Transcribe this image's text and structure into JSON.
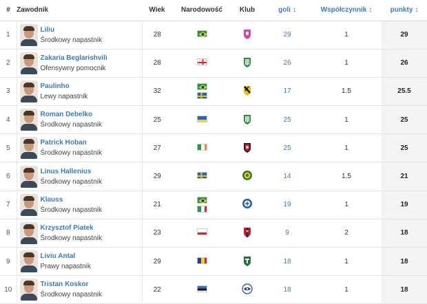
{
  "header": {
    "num": "#",
    "player": "Zawodnik",
    "age": "Wiek",
    "nation": "Narodowość",
    "club": "Klub",
    "goals": "goli",
    "coef": "Współczynnik",
    "points": "punkty",
    "sort_arrow": "↕"
  },
  "rows": [
    {
      "num": "1",
      "name": "Liliu",
      "position": "Środkowy napastnik",
      "age": "28",
      "flags": [
        "brazil-flag"
      ],
      "club_icon": "club-crest-pink",
      "goals": "29",
      "coef": "1",
      "points": "29"
    },
    {
      "num": "2",
      "name": "Zakaria Beglarishvili",
      "position": "Ofensywny pomocnik",
      "age": "28",
      "flags": [
        "georgia-flag"
      ],
      "club_icon": "club-crest-green-white",
      "goals": "26",
      "coef": "1",
      "points": "26"
    },
    {
      "num": "3",
      "name": "Paulinho",
      "position": "Lewy napastnik",
      "age": "32",
      "flags": [
        "brazil-flag",
        "sweden-flag"
      ],
      "club_icon": "club-crest-black-yellow",
      "goals": "17",
      "coef": "1.5",
      "points": "25.5"
    },
    {
      "num": "4",
      "name": "Roman Debelko",
      "position": "Środkowy napastnik",
      "age": "25",
      "flags": [
        "ukraine-flag"
      ],
      "club_icon": "club-crest-green-white",
      "goals": "25",
      "coef": "1",
      "points": "25"
    },
    {
      "num": "5",
      "name": "Patrick Hoban",
      "position": "Środkowy napastnik",
      "age": "27",
      "flags": [
        "ireland-flag"
      ],
      "club_icon": "club-crest-red-black",
      "goals": "25",
      "coef": "1",
      "points": "25"
    },
    {
      "num": "6",
      "name": "Linus Hallenius",
      "position": "Środkowy napastnik",
      "age": "29",
      "flags": [
        "sweden-flag"
      ],
      "club_icon": "club-crest-green-yellow",
      "goals": "14",
      "coef": "1.5",
      "points": "21"
    },
    {
      "num": "7",
      "name": "Klauss",
      "position": "Środkowy napastnik",
      "age": "21",
      "flags": [
        "brazil-flag",
        "italy-flag"
      ],
      "club_icon": "club-crest-blue",
      "goals": "19",
      "coef": "1",
      "points": "19"
    },
    {
      "num": "8",
      "name": "Krzysztof Piatek",
      "position": "Środkowy napastnik",
      "age": "23",
      "flags": [
        "poland-flag"
      ],
      "club_icon": "club-crest-red-blue",
      "goals": "9",
      "coef": "2",
      "points": "18"
    },
    {
      "num": "9",
      "name": "Liviu Antal",
      "position": "Prawy napastnik",
      "age": "29",
      "flags": [
        "romania-flag"
      ],
      "club_icon": "club-crest-green",
      "goals": "18",
      "coef": "1",
      "points": "18"
    },
    {
      "num": "10",
      "name": "Tristan Koskor",
      "position": "Środkowy napastnik",
      "age": "22",
      "flags": [
        "estonia-flag"
      ],
      "club_icon": "club-crest-blue-white",
      "goals": "18",
      "coef": "1",
      "points": "18"
    }
  ],
  "colors": {
    "link": "#3b7bbf",
    "sorted_column_bg": "#f4f4f4"
  }
}
